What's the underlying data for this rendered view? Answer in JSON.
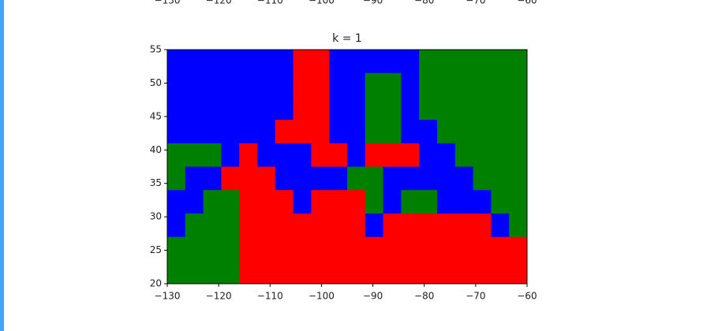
{
  "chart_data": {
    "type": "region",
    "title": "k = 1",
    "xlim": [
      -130,
      -60
    ],
    "ylim": [
      20,
      55
    ],
    "xticks": [
      {
        "value": -130,
        "label": "−130"
      },
      {
        "value": -120,
        "label": "−120"
      },
      {
        "value": -110,
        "label": "−110"
      },
      {
        "value": -100,
        "label": "−100"
      },
      {
        "value": -90,
        "label": "−90"
      },
      {
        "value": -80,
        "label": "−80"
      },
      {
        "value": -70,
        "label": "−70"
      },
      {
        "value": -60,
        "label": "−60"
      }
    ],
    "yticks": [
      20,
      25,
      30,
      35,
      40,
      45,
      50,
      55
    ],
    "colors": [
      "#0000ff",
      "#ff0000",
      "#008000"
    ],
    "grid": [
      [
        0,
        0,
        0,
        0,
        0,
        0,
        0,
        1,
        1,
        0,
        0,
        0,
        0,
        0,
        2,
        2,
        2,
        2,
        2,
        2
      ],
      [
        0,
        0,
        0,
        0,
        0,
        0,
        0,
        1,
        1,
        0,
        0,
        2,
        2,
        0,
        2,
        2,
        2,
        2,
        2,
        2
      ],
      [
        0,
        0,
        0,
        0,
        0,
        0,
        0,
        1,
        1,
        0,
        0,
        2,
        2,
        0,
        2,
        2,
        2,
        2,
        2,
        2
      ],
      [
        0,
        0,
        0,
        0,
        0,
        0,
        1,
        1,
        1,
        0,
        0,
        2,
        2,
        0,
        0,
        2,
        2,
        2,
        2,
        2
      ],
      [
        2,
        2,
        2,
        0,
        1,
        0,
        0,
        0,
        1,
        1,
        0,
        1,
        1,
        1,
        0,
        0,
        2,
        2,
        2,
        2
      ],
      [
        2,
        0,
        0,
        1,
        1,
        1,
        0,
        0,
        0,
        0,
        2,
        2,
        0,
        0,
        0,
        0,
        0,
        2,
        2,
        2
      ],
      [
        0,
        0,
        2,
        2,
        1,
        1,
        1,
        0,
        1,
        1,
        1,
        2,
        0,
        2,
        2,
        0,
        0,
        0,
        2,
        2
      ],
      [
        0,
        2,
        2,
        2,
        1,
        1,
        1,
        1,
        1,
        1,
        1,
        0,
        1,
        1,
        1,
        1,
        1,
        1,
        0,
        2
      ],
      [
        2,
        2,
        2,
        2,
        1,
        1,
        1,
        1,
        1,
        1,
        1,
        1,
        1,
        1,
        1,
        1,
        1,
        1,
        1,
        1
      ],
      [
        2,
        2,
        2,
        2,
        1,
        1,
        1,
        1,
        1,
        1,
        1,
        1,
        1,
        1,
        1,
        1,
        1,
        1,
        1,
        1
      ]
    ]
  },
  "cropped_above": {
    "xticks": [
      {
        "value": -130,
        "label": "−130"
      },
      {
        "value": -120,
        "label": "−120"
      },
      {
        "value": -110,
        "label": "−110"
      },
      {
        "value": -100,
        "label": "−100"
      },
      {
        "value": -90,
        "label": "−90"
      },
      {
        "value": -80,
        "label": "−80"
      },
      {
        "value": -70,
        "label": "−70"
      },
      {
        "value": -60,
        "label": "−60"
      }
    ]
  }
}
